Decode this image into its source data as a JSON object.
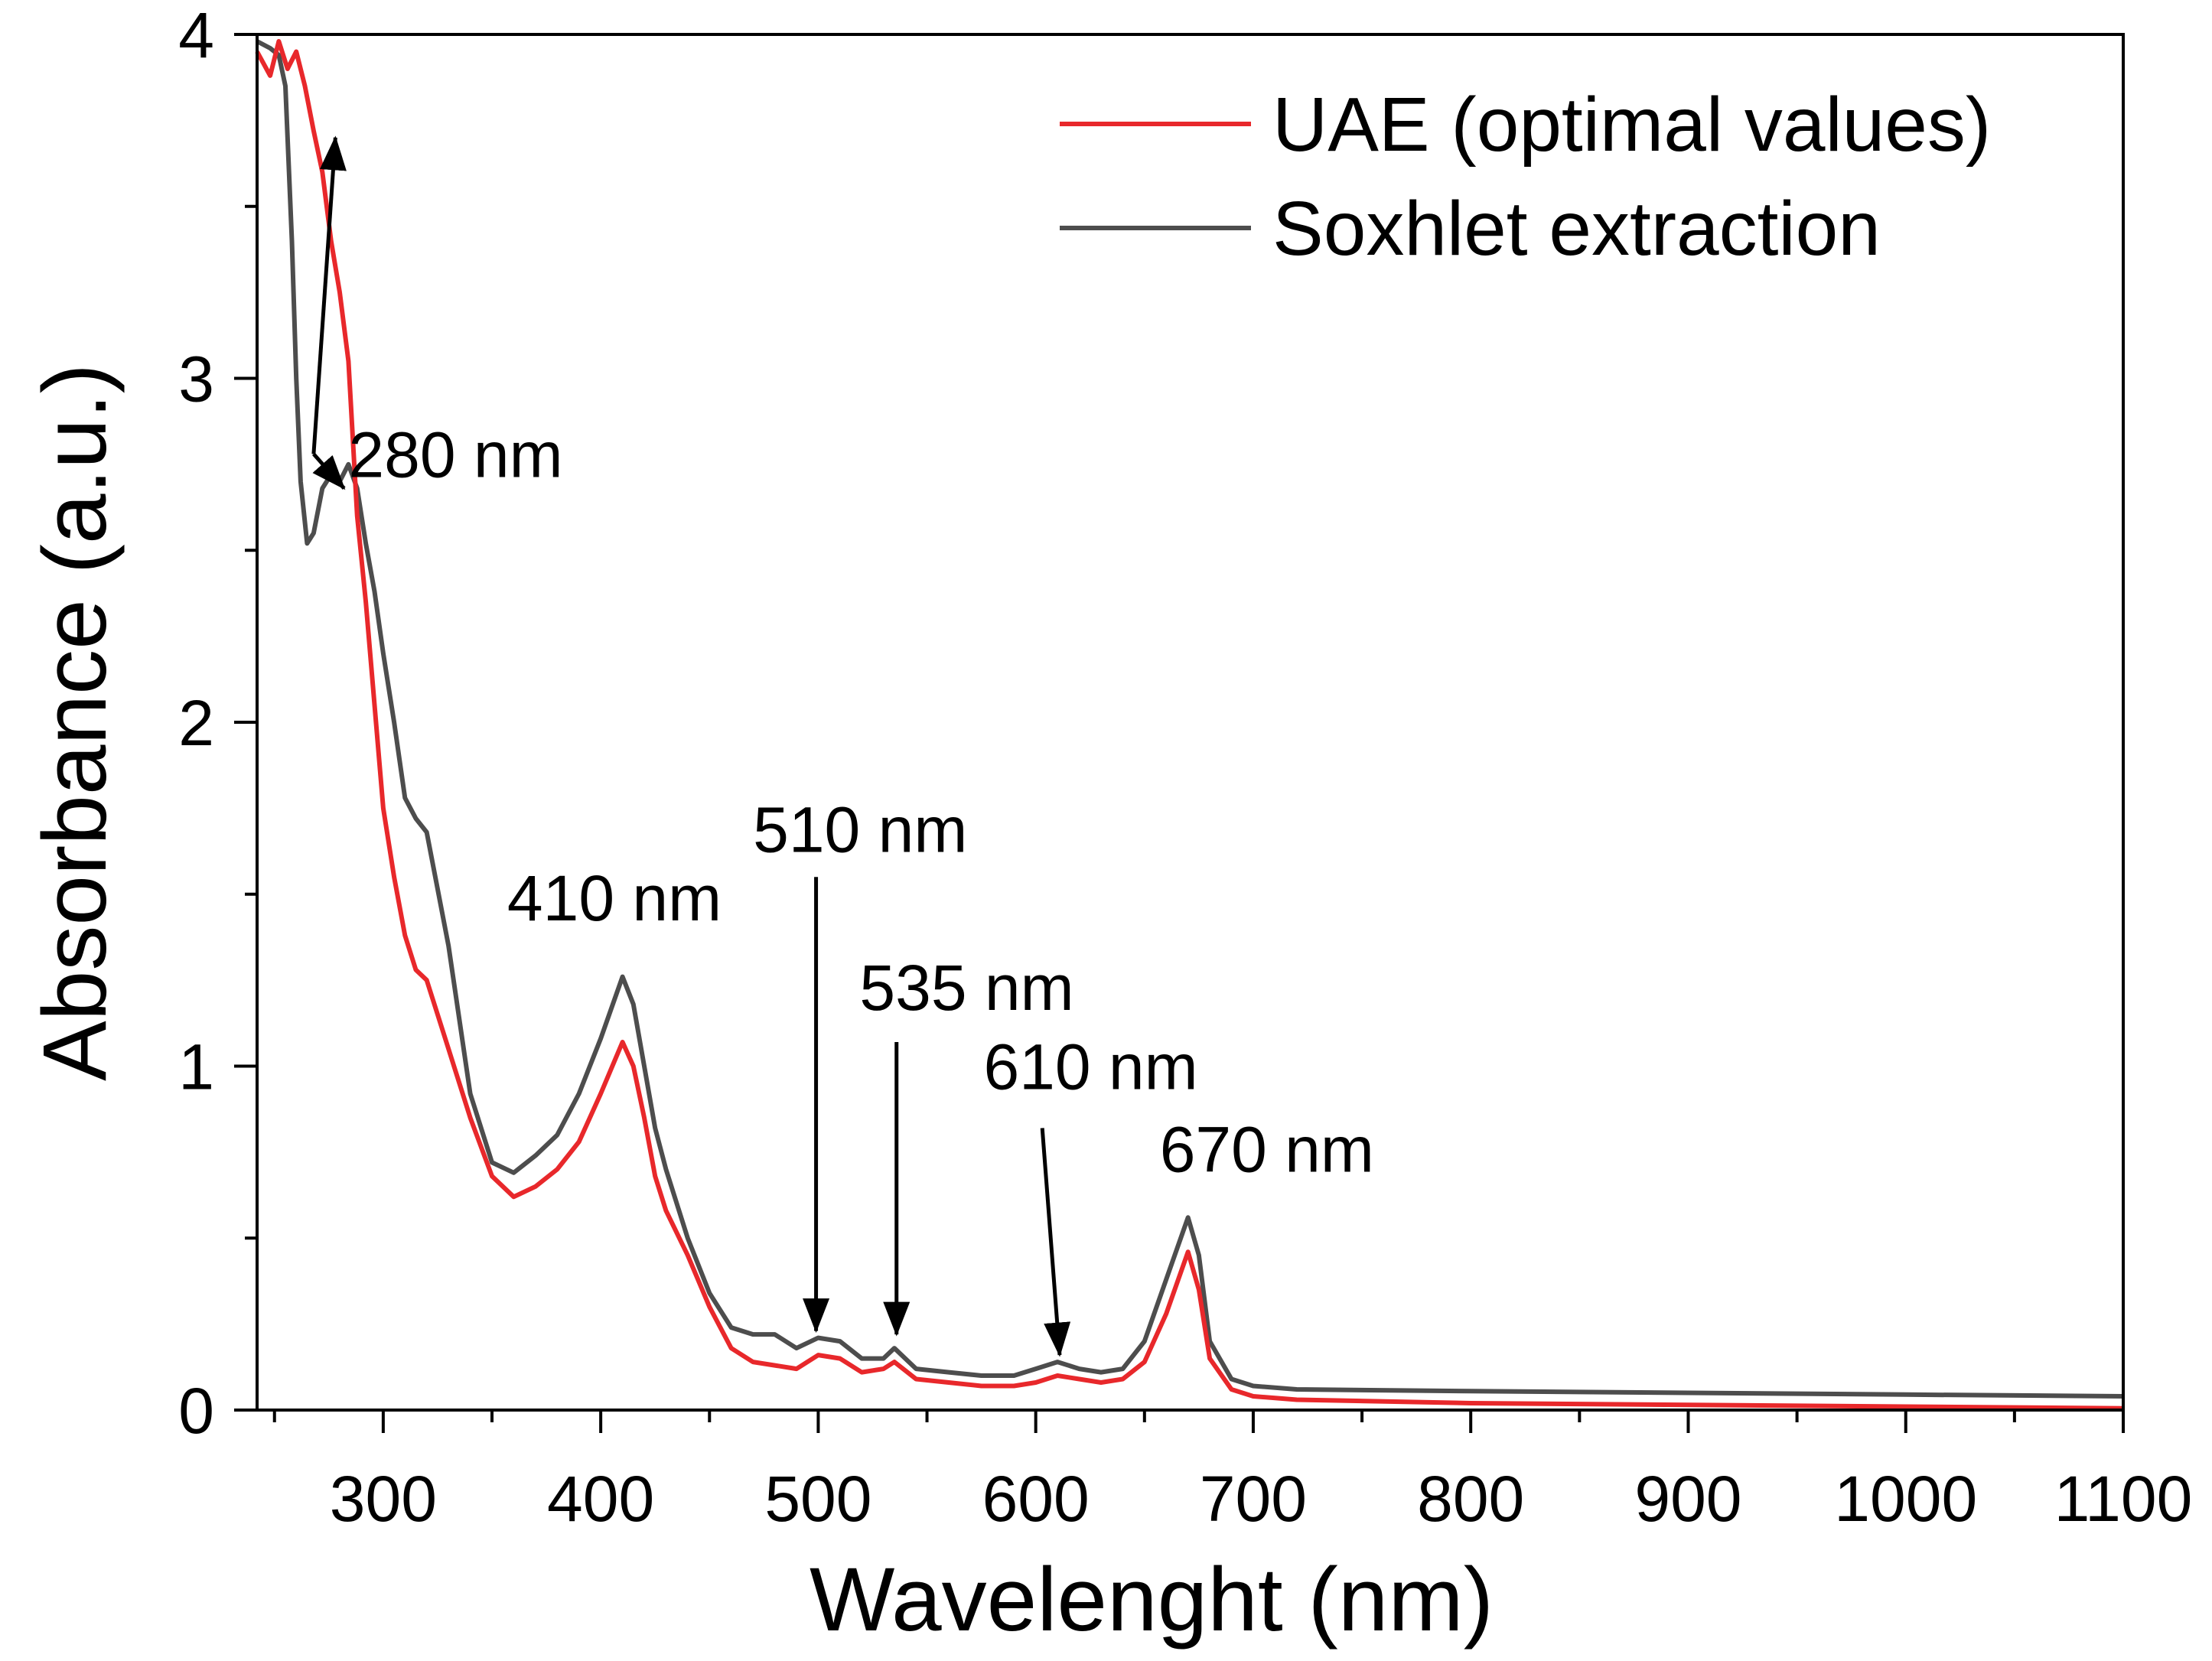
{
  "chart_data": {
    "type": "line",
    "title": "",
    "xlabel": "Wavelenght (nm)",
    "ylabel": "Absorbance (a.u.)",
    "xlim": [
      242,
      1100
    ],
    "ylim": [
      0,
      4
    ],
    "x_ticks": [
      300,
      400,
      500,
      600,
      700,
      800,
      900,
      1000,
      1100
    ],
    "x_tick_labels": [
      "300",
      "400",
      "500",
      "600",
      "700",
      "800",
      "900",
      "1000",
      "1100"
    ],
    "y_ticks": [
      0,
      1,
      2,
      3,
      4
    ],
    "y_tick_labels": [
      "0",
      "1",
      "2",
      "3",
      "4"
    ],
    "grid": false,
    "legend_position": "top-right",
    "series": [
      {
        "name": "UAE (optimal values)",
        "color": "#e8282b",
        "points": [
          [
            242,
            3.95
          ],
          [
            248,
            3.88
          ],
          [
            252,
            3.98
          ],
          [
            256,
            3.9
          ],
          [
            260,
            3.95
          ],
          [
            264,
            3.85
          ],
          [
            268,
            3.72
          ],
          [
            272,
            3.6
          ],
          [
            276,
            3.4
          ],
          [
            280,
            3.25
          ],
          [
            284,
            3.05
          ],
          [
            288,
            2.6
          ],
          [
            292,
            2.35
          ],
          [
            296,
            2.05
          ],
          [
            300,
            1.75
          ],
          [
            305,
            1.55
          ],
          [
            310,
            1.38
          ],
          [
            315,
            1.28
          ],
          [
            320,
            1.25
          ],
          [
            330,
            1.05
          ],
          [
            340,
            0.85
          ],
          [
            350,
            0.68
          ],
          [
            360,
            0.62
          ],
          [
            370,
            0.65
          ],
          [
            380,
            0.7
          ],
          [
            390,
            0.78
          ],
          [
            400,
            0.92
          ],
          [
            410,
            1.07
          ],
          [
            415,
            1.0
          ],
          [
            420,
            0.85
          ],
          [
            425,
            0.68
          ],
          [
            430,
            0.58
          ],
          [
            440,
            0.45
          ],
          [
            450,
            0.3
          ],
          [
            460,
            0.18
          ],
          [
            470,
            0.14
          ],
          [
            480,
            0.13
          ],
          [
            490,
            0.12
          ],
          [
            500,
            0.16
          ],
          [
            510,
            0.15
          ],
          [
            520,
            0.11
          ],
          [
            530,
            0.12
          ],
          [
            535,
            0.14
          ],
          [
            545,
            0.09
          ],
          [
            560,
            0.08
          ],
          [
            575,
            0.07
          ],
          [
            590,
            0.07
          ],
          [
            600,
            0.08
          ],
          [
            610,
            0.1
          ],
          [
            620,
            0.09
          ],
          [
            630,
            0.08
          ],
          [
            640,
            0.09
          ],
          [
            650,
            0.14
          ],
          [
            660,
            0.28
          ],
          [
            670,
            0.46
          ],
          [
            675,
            0.35
          ],
          [
            680,
            0.15
          ],
          [
            690,
            0.06
          ],
          [
            700,
            0.04
          ],
          [
            720,
            0.03
          ],
          [
            800,
            0.02
          ],
          [
            900,
            0.015
          ],
          [
            1000,
            0.01
          ],
          [
            1100,
            0.005
          ]
        ]
      },
      {
        "name": "Soxhlet extraction",
        "color": "#4d4d4d",
        "points": [
          [
            242,
            3.98
          ],
          [
            248,
            3.96
          ],
          [
            252,
            3.94
          ],
          [
            255,
            3.85
          ],
          [
            258,
            3.4
          ],
          [
            260,
            3.0
          ],
          [
            262,
            2.7
          ],
          [
            265,
            2.52
          ],
          [
            268,
            2.55
          ],
          [
            272,
            2.68
          ],
          [
            276,
            2.72
          ],
          [
            280,
            2.7
          ],
          [
            284,
            2.75
          ],
          [
            288,
            2.68
          ],
          [
            292,
            2.52
          ],
          [
            296,
            2.38
          ],
          [
            300,
            2.2
          ],
          [
            305,
            2.0
          ],
          [
            310,
            1.78
          ],
          [
            315,
            1.72
          ],
          [
            320,
            1.68
          ],
          [
            330,
            1.35
          ],
          [
            340,
            0.92
          ],
          [
            350,
            0.72
          ],
          [
            360,
            0.69
          ],
          [
            370,
            0.74
          ],
          [
            380,
            0.8
          ],
          [
            390,
            0.92
          ],
          [
            400,
            1.08
          ],
          [
            410,
            1.26
          ],
          [
            415,
            1.18
          ],
          [
            420,
            1.0
          ],
          [
            425,
            0.82
          ],
          [
            430,
            0.7
          ],
          [
            440,
            0.5
          ],
          [
            450,
            0.34
          ],
          [
            460,
            0.24
          ],
          [
            470,
            0.22
          ],
          [
            480,
            0.22
          ],
          [
            490,
            0.18
          ],
          [
            500,
            0.21
          ],
          [
            510,
            0.2
          ],
          [
            520,
            0.15
          ],
          [
            530,
            0.15
          ],
          [
            535,
            0.18
          ],
          [
            545,
            0.12
          ],
          [
            560,
            0.11
          ],
          [
            575,
            0.1
          ],
          [
            590,
            0.1
          ],
          [
            600,
            0.12
          ],
          [
            610,
            0.14
          ],
          [
            620,
            0.12
          ],
          [
            630,
            0.11
          ],
          [
            640,
            0.12
          ],
          [
            650,
            0.2
          ],
          [
            660,
            0.38
          ],
          [
            670,
            0.56
          ],
          [
            675,
            0.45
          ],
          [
            680,
            0.2
          ],
          [
            690,
            0.09
          ],
          [
            700,
            0.07
          ],
          [
            720,
            0.06
          ],
          [
            800,
            0.055
          ],
          [
            900,
            0.05
          ],
          [
            1000,
            0.045
          ],
          [
            1100,
            0.04
          ]
        ]
      }
    ],
    "annotations": [
      {
        "label": "280 nm",
        "text_x": 284,
        "text_y": 2.78,
        "arrows": [
          {
            "from": [
              268,
              2.78
            ],
            "to": [
              278,
              3.7
            ]
          },
          {
            "from": [
              268,
              2.78
            ],
            "to": [
              282,
              2.68
            ]
          }
        ]
      },
      {
        "label": "410 nm",
        "text_x": 357,
        "text_y": 1.49,
        "arrows": []
      },
      {
        "label": "510 nm",
        "text_x": 470,
        "text_y": 1.69,
        "arrows": [
          {
            "from": [
              499,
              1.55
            ],
            "to": [
              499,
              0.23
            ]
          }
        ]
      },
      {
        "label": "535 nm",
        "text_x": 519,
        "text_y": 1.23,
        "arrows": [
          {
            "from": [
              536,
              1.07
            ],
            "to": [
              536,
              0.22
            ]
          }
        ]
      },
      {
        "label": "610 nm",
        "text_x": 576,
        "text_y": 1.0,
        "arrows": [
          {
            "from": [
              603,
              0.82
            ],
            "to": [
              611,
              0.16
            ]
          }
        ]
      },
      {
        "label": "670 nm",
        "text_x": 657,
        "text_y": 0.76,
        "arrows": []
      }
    ]
  }
}
